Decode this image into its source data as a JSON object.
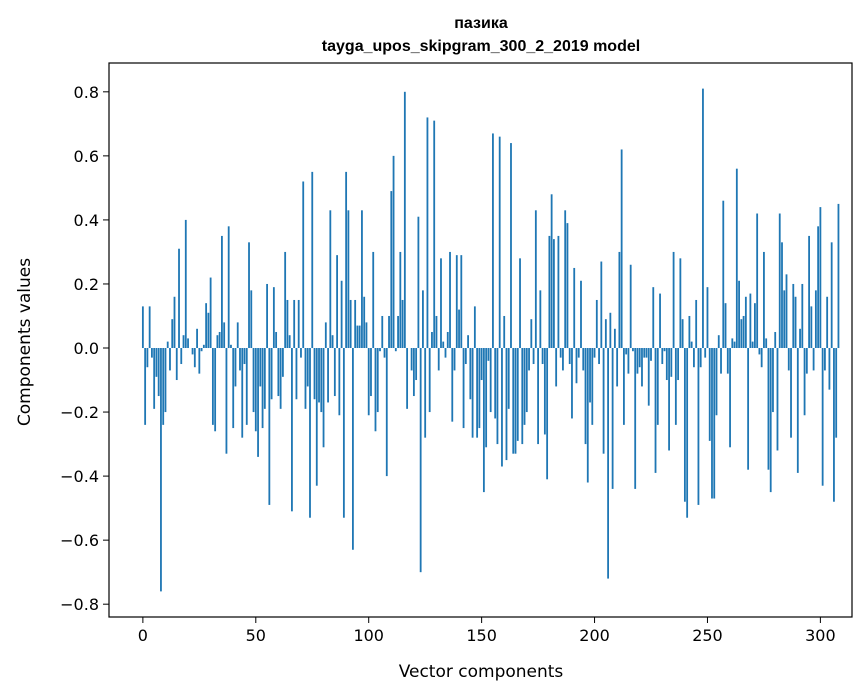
{
  "chart_data": {
    "type": "bar",
    "title": "пазика",
    "subtitle": "tayga_upos_skipgram_300_2_2019 model",
    "xlabel": "Vector components",
    "ylabel": "Components values",
    "xlim": [
      -15,
      314
    ],
    "ylim": [
      -0.84,
      0.89
    ],
    "xticks": [
      0,
      50,
      100,
      150,
      200,
      250,
      300
    ],
    "xtick_labels": [
      "0",
      "50",
      "100",
      "150",
      "200",
      "250",
      "300"
    ],
    "yticks": [
      -0.8,
      -0.6,
      -0.4,
      -0.2,
      0.0,
      0.2,
      0.4,
      0.6,
      0.8
    ],
    "ytick_labels": [
      "−0.8",
      "−0.6",
      "−0.4",
      "−0.2",
      "0.0",
      "0.2",
      "0.4",
      "0.6",
      "0.8"
    ],
    "grid": false,
    "bar_color": "#1f77b4",
    "values": [
      0.13,
      -0.24,
      -0.06,
      0.13,
      -0.03,
      -0.19,
      -0.09,
      -0.15,
      -0.76,
      -0.24,
      -0.2,
      0.02,
      -0.07,
      0.09,
      0.16,
      -0.1,
      0.31,
      -0.05,
      0.04,
      0.4,
      0.03,
      0.0,
      -0.02,
      -0.06,
      0.06,
      -0.08,
      -0.01,
      0.01,
      0.14,
      0.11,
      0.22,
      -0.24,
      -0.26,
      0.04,
      0.05,
      0.35,
      0.08,
      -0.33,
      0.38,
      0.01,
      -0.25,
      -0.12,
      0.08,
      -0.07,
      -0.28,
      -0.05,
      -0.24,
      0.33,
      0.18,
      -0.2,
      -0.26,
      -0.34,
      -0.12,
      -0.25,
      -0.19,
      0.2,
      -0.49,
      -0.16,
      0.19,
      0.05,
      -0.15,
      -0.19,
      -0.09,
      0.3,
      0.15,
      0.04,
      -0.51,
      0.15,
      -0.16,
      0.15,
      -0.03,
      0.52,
      -0.19,
      -0.12,
      -0.53,
      0.55,
      -0.16,
      -0.43,
      -0.17,
      -0.2,
      -0.31,
      0.08,
      -0.17,
      0.43,
      0.04,
      -0.15,
      0.29,
      -0.21,
      0.21,
      -0.53,
      0.55,
      0.43,
      0.15,
      -0.63,
      0.15,
      0.07,
      0.07,
      0.43,
      0.16,
      0.08,
      -0.21,
      -0.15,
      0.3,
      -0.26,
      -0.2,
      -0.01,
      0.1,
      -0.03,
      -0.4,
      0.1,
      0.49,
      0.6,
      -0.01,
      0.1,
      0.3,
      0.15,
      0.8,
      -0.19,
      0.0,
      -0.07,
      -0.15,
      -0.1,
      0.41,
      -0.7,
      0.18,
      -0.28,
      0.72,
      -0.2,
      0.05,
      0.71,
      0.1,
      -0.07,
      0.28,
      0.02,
      -0.03,
      0.05,
      0.3,
      -0.23,
      -0.07,
      0.29,
      0.12,
      0.29,
      -0.25,
      -0.05,
      0.04,
      -0.16,
      -0.28,
      0.13,
      -0.28,
      -0.25,
      -0.1,
      -0.45,
      -0.31,
      -0.04,
      -0.2,
      0.67,
      -0.22,
      -0.3,
      0.66,
      -0.37,
      0.1,
      -0.35,
      -0.19,
      0.64,
      -0.33,
      -0.33,
      -0.29,
      0.28,
      -0.3,
      -0.24,
      -0.2,
      -0.07,
      0.09,
      -0.05,
      0.43,
      -0.3,
      0.18,
      -0.05,
      -0.27,
      -0.41,
      0.35,
      0.48,
      0.34,
      -0.12,
      0.35,
      -0.03,
      -0.07,
      0.43,
      0.39,
      -0.05,
      -0.22,
      0.25,
      -0.11,
      -0.03,
      0.21,
      -0.07,
      -0.3,
      -0.42,
      -0.17,
      -0.24,
      -0.03,
      0.15,
      -0.05,
      0.27,
      -0.33,
      0.09,
      -0.72,
      0.11,
      -0.44,
      0.06,
      -0.12,
      0.3,
      0.62,
      -0.24,
      -0.02,
      -0.08,
      0.26,
      -0.01,
      -0.44,
      -0.08,
      -0.06,
      -0.12,
      -0.03,
      -0.03,
      -0.18,
      -0.04,
      0.19,
      -0.39,
      -0.24,
      0.17,
      -0.05,
      -0.01,
      -0.1,
      -0.32,
      -0.09,
      0.3,
      -0.24,
      -0.1,
      0.28,
      0.09,
      -0.48,
      -0.53,
      0.1,
      0.02,
      -0.06,
      0.15,
      -0.49,
      -0.06,
      0.81,
      -0.03,
      0.19,
      -0.29,
      -0.47,
      -0.47,
      -0.21,
      0.04,
      -0.08,
      0.46,
      0.14,
      -0.08,
      -0.31,
      0.03,
      0.02,
      0.56,
      0.21,
      0.09,
      0.1,
      0.16,
      -0.38,
      0.17,
      0.02,
      0.14,
      0.42,
      -0.02,
      -0.06,
      0.3,
      0.03,
      -0.38,
      -0.45,
      -0.2,
      0.05,
      -0.32,
      0.42,
      0.33,
      0.18,
      0.23,
      -0.07,
      -0.28,
      0.2,
      0.16,
      -0.39,
      0.06,
      0.2,
      -0.21,
      -0.08,
      0.35,
      0.13,
      -0.07,
      0.18,
      0.38,
      0.44,
      -0.43,
      -0.07,
      0.16,
      -0.13,
      0.33,
      -0.48,
      -0.28,
      0.45
    ]
  }
}
